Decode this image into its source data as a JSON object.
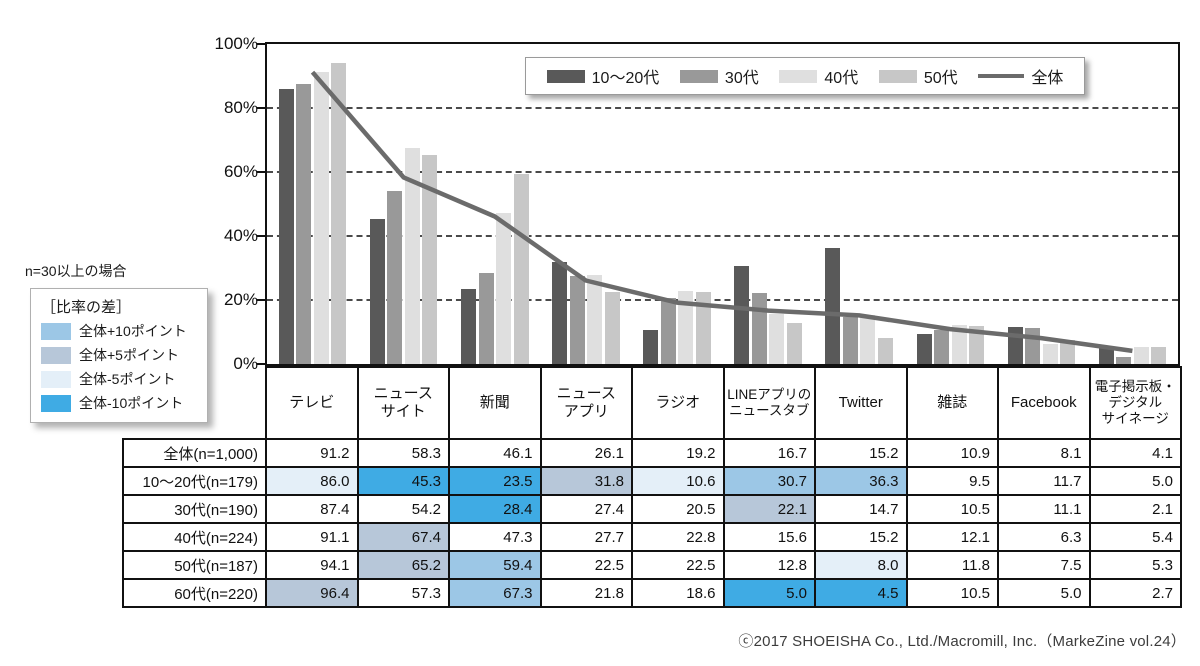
{
  "chart_data": {
    "type": "bar+line",
    "categories": [
      "テレビ",
      "ニュースサイト",
      "新聞",
      "ニュースアプリ",
      "ラジオ",
      "LINEアプリのニュースタブ",
      "Twitter",
      "雑誌",
      "Facebook",
      "電子掲示板・デジタルサイネージ"
    ],
    "series": [
      {
        "name": "10〜20代",
        "color": "#595959",
        "values": [
          86.0,
          45.3,
          23.5,
          31.8,
          10.6,
          30.7,
          36.3,
          9.5,
          11.7,
          5.0
        ]
      },
      {
        "name": "30代",
        "color": "#999999",
        "values": [
          87.4,
          54.2,
          28.4,
          27.4,
          20.5,
          22.1,
          14.7,
          10.5,
          11.1,
          2.1
        ]
      },
      {
        "name": "40代",
        "color": "#dfdfdf",
        "values": [
          91.1,
          67.4,
          47.3,
          27.7,
          22.8,
          15.6,
          15.2,
          12.1,
          6.3,
          5.4
        ]
      },
      {
        "name": "50代",
        "color": "#c7c7c7",
        "values": [
          94.1,
          65.2,
          59.4,
          22.5,
          22.5,
          12.8,
          8.0,
          11.8,
          7.5,
          5.3
        ]
      }
    ],
    "line_series": {
      "name": "全体",
      "color": "#6b6b6b",
      "values": [
        91.2,
        58.3,
        46.1,
        26.1,
        19.2,
        16.7,
        15.2,
        10.9,
        8.1,
        4.1
      ]
    },
    "ylim": [
      0,
      100
    ],
    "ytick_values": [
      100,
      80,
      60,
      40,
      20,
      0
    ],
    "ytick_labels": [
      "100%",
      "80%",
      "60%",
      "40%",
      "20%",
      "0%"
    ],
    "gridlines": [
      20,
      40,
      60,
      80
    ],
    "legend_position": "top"
  },
  "diff_colors": {
    "p10": "#9cc7e6",
    "p5": "#b7c7d9",
    "m5": "#e4eff8",
    "m10": "#3fabe4"
  },
  "note": {
    "condition": "n=30以上の場合",
    "box_title": "［比率の差］",
    "items": [
      {
        "key": "p10",
        "label": "全体+10ポイント"
      },
      {
        "key": "p5",
        "label": "全体+5ポイント"
      },
      {
        "key": "m5",
        "label": "全体-5ポイント"
      },
      {
        "key": "m10",
        "label": "全体-10ポイント"
      }
    ]
  },
  "table": {
    "columns": [
      [
        "テレビ"
      ],
      [
        "ニュース",
        "サイト"
      ],
      [
        "新聞"
      ],
      [
        "ニュース",
        "アプリ"
      ],
      [
        "ラジオ"
      ],
      [
        "LINEアプリの",
        "ニュースタブ"
      ],
      [
        "Twitter"
      ],
      [
        "雑誌"
      ],
      [
        "Facebook"
      ],
      [
        "電子掲示板・",
        "デジタル",
        "サイネージ"
      ]
    ],
    "rows": [
      {
        "label": "全体(n=1,000)",
        "values": [
          "91.2",
          "58.3",
          "46.1",
          "26.1",
          "19.2",
          "16.7",
          "15.2",
          "10.9",
          "8.1",
          "4.1"
        ],
        "diff": [
          "",
          "",
          "",
          "",
          "",
          "",
          "",
          "",
          "",
          ""
        ]
      },
      {
        "label": "10〜20代(n=179)",
        "values": [
          "86.0",
          "45.3",
          "23.5",
          "31.8",
          "10.6",
          "30.7",
          "36.3",
          "9.5",
          "11.7",
          "5.0"
        ],
        "diff": [
          "m5",
          "m10",
          "m10",
          "p5",
          "m5",
          "p10",
          "p10",
          "",
          "",
          ""
        ]
      },
      {
        "label": "30代(n=190)",
        "values": [
          "87.4",
          "54.2",
          "28.4",
          "27.4",
          "20.5",
          "22.1",
          "14.7",
          "10.5",
          "11.1",
          "2.1"
        ],
        "diff": [
          "",
          "",
          "m10",
          "",
          "",
          "p5",
          "",
          "",
          "",
          ""
        ]
      },
      {
        "label": "40代(n=224)",
        "values": [
          "91.1",
          "67.4",
          "47.3",
          "27.7",
          "22.8",
          "15.6",
          "15.2",
          "12.1",
          "6.3",
          "5.4"
        ],
        "diff": [
          "",
          "p5",
          "",
          "",
          "",
          "",
          "",
          "",
          "",
          ""
        ]
      },
      {
        "label": "50代(n=187)",
        "values": [
          "94.1",
          "65.2",
          "59.4",
          "22.5",
          "22.5",
          "12.8",
          "8.0",
          "11.8",
          "7.5",
          "5.3"
        ],
        "diff": [
          "",
          "p5",
          "p10",
          "",
          "",
          "",
          "m5",
          "",
          "",
          ""
        ]
      },
      {
        "label": "60代(n=220)",
        "values": [
          "96.4",
          "57.3",
          "67.3",
          "21.8",
          "18.6",
          "5.0",
          "4.5",
          "10.5",
          "5.0",
          "2.7"
        ],
        "diff": [
          "p5",
          "",
          "p10",
          "",
          "",
          "m10",
          "m10",
          "",
          "",
          ""
        ]
      }
    ]
  },
  "footer": {
    "text": "ⓒ2017 SHOEISHA Co., Ltd./Macromill, Inc.（MarkeZine vol.24）"
  }
}
